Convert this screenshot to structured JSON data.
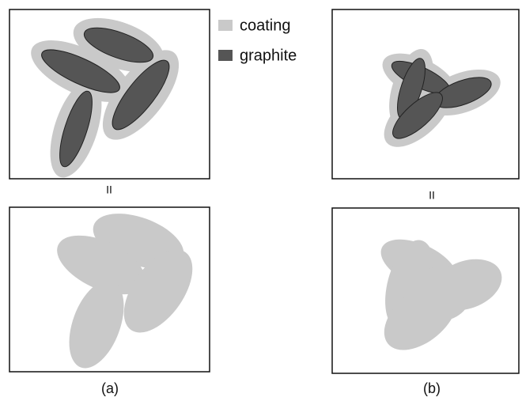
{
  "legend": {
    "items": [
      {
        "label": "coating"
      },
      {
        "label": "graphite"
      }
    ]
  },
  "panels": [
    {
      "label": "(a)",
      "separator": "II"
    },
    {
      "label": "(b)",
      "separator": "II"
    }
  ]
}
